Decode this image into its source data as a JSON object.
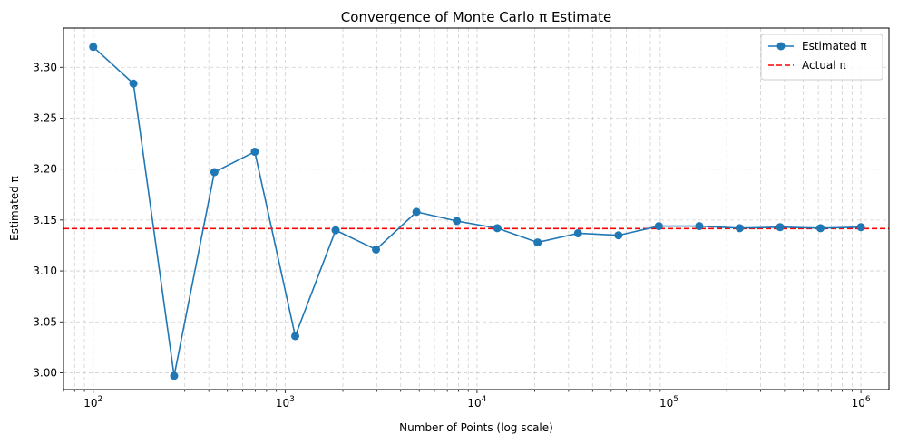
{
  "chart_data": {
    "type": "line",
    "title": "Convergence of Monte Carlo π Estimate",
    "xlabel": "Number of Points (log scale)",
    "ylabel": "Estimated π",
    "x_scale": "log",
    "xlim": [
      70,
      1400000
    ],
    "ylim": [
      2.9835,
      3.3385
    ],
    "x_ticks": [
      {
        "value": 100,
        "base": "10",
        "exp": "2"
      },
      {
        "value": 1000,
        "base": "10",
        "exp": "3"
      },
      {
        "value": 10000,
        "base": "10",
        "exp": "4"
      },
      {
        "value": 100000,
        "base": "10",
        "exp": "5"
      },
      {
        "value": 1000000,
        "base": "10",
        "exp": "6"
      }
    ],
    "y_ticks": [
      "3.00",
      "3.05",
      "3.10",
      "3.15",
      "3.20",
      "3.25",
      "3.30"
    ],
    "grid": true,
    "legend_position": "top-right",
    "series": [
      {
        "name": "Estimated π",
        "color": "#1f77b4",
        "style": "line-marker",
        "x": [
          100,
          162,
          264,
          428,
          695,
          1129,
          1833,
          2976,
          4833,
          7848,
          12743,
          20691,
          33598,
          54556,
          88587,
          143845,
          233572,
          379269,
          615848,
          1000000
        ],
        "y": [
          3.32,
          3.284,
          2.997,
          3.197,
          3.217,
          3.036,
          3.14,
          3.121,
          3.158,
          3.149,
          3.142,
          3.128,
          3.137,
          3.135,
          3.144,
          3.144,
          3.142,
          3.143,
          3.142,
          3.143
        ]
      },
      {
        "name": "Actual π",
        "color": "#ff0000",
        "style": "dashed-hline",
        "y": 3.14159
      }
    ]
  }
}
